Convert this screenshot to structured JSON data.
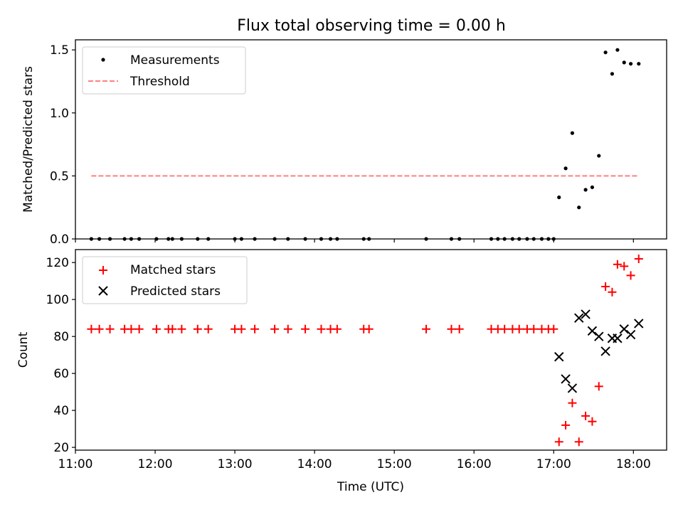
{
  "chart_data": [
    {
      "type": "scatter",
      "title": "Flux total observing time = 0.00 h",
      "ylabel": "Matched/Predicted stars",
      "xlabel": "",
      "xlim": [
        "11:00",
        "18:25"
      ],
      "ylim": [
        0,
        1.58
      ],
      "yticks": [
        0,
        0.5,
        1.0,
        1.5
      ],
      "ytick_labels": [
        "0.0",
        "0.5",
        "1.0",
        "1.5"
      ],
      "legend": {
        "placement": "top-left"
      },
      "series": [
        {
          "name": "Measurements",
          "marker": "dot",
          "color": "#000000",
          "points": [
            [
              "11:12",
              0
            ],
            [
              "11:18",
              0
            ],
            [
              "11:26",
              0
            ],
            [
              "11:37",
              0
            ],
            [
              "11:42",
              0
            ],
            [
              "11:48",
              0
            ],
            [
              "12:01",
              0
            ],
            [
              "12:10",
              0
            ],
            [
              "12:13",
              0
            ],
            [
              "12:20",
              0
            ],
            [
              "12:32",
              0
            ],
            [
              "12:40",
              0
            ],
            [
              "13:00",
              0
            ],
            [
              "13:05",
              0
            ],
            [
              "13:15",
              0
            ],
            [
              "13:30",
              0
            ],
            [
              "13:40",
              0
            ],
            [
              "13:53",
              0
            ],
            [
              "14:05",
              0
            ],
            [
              "14:12",
              0
            ],
            [
              "14:17",
              0
            ],
            [
              "14:37",
              0
            ],
            [
              "14:41",
              0
            ],
            [
              "15:24",
              0
            ],
            [
              "15:43",
              0
            ],
            [
              "15:49",
              0
            ],
            [
              "16:13",
              0
            ],
            [
              "16:18",
              0
            ],
            [
              "16:23",
              0
            ],
            [
              "16:29",
              0
            ],
            [
              "16:34",
              0
            ],
            [
              "16:40",
              0
            ],
            [
              "16:45",
              0
            ],
            [
              "16:51",
              0
            ],
            [
              "16:56",
              0
            ],
            [
              "17:00",
              0
            ],
            [
              "17:04",
              0.33
            ],
            [
              "17:09",
              0.56
            ],
            [
              "17:14",
              0.84
            ],
            [
              "17:19",
              0.25
            ],
            [
              "17:24",
              0.39
            ],
            [
              "17:29",
              0.41
            ],
            [
              "17:34",
              0.66
            ],
            [
              "17:39",
              1.48
            ],
            [
              "17:44",
              1.31
            ],
            [
              "17:48",
              1.5
            ],
            [
              "17:53",
              1.4
            ],
            [
              "17:58",
              1.39
            ],
            [
              "18:04",
              1.39
            ]
          ]
        },
        {
          "name": "Threshold",
          "marker": "dashed-line",
          "color": "#ff7f7f",
          "points": [
            [
              "11:12",
              0.5
            ],
            [
              "18:04",
              0.5
            ]
          ]
        }
      ]
    },
    {
      "type": "scatter",
      "title": "",
      "xlabel": "Time (UTC)",
      "ylabel": "Count",
      "xlim": [
        "11:00",
        "18:25"
      ],
      "ylim": [
        18.5,
        127
      ],
      "xticks": [
        "11:00",
        "12:00",
        "13:00",
        "14:00",
        "15:00",
        "16:00",
        "17:00",
        "18:00"
      ],
      "yticks": [
        20,
        40,
        60,
        80,
        100,
        120
      ],
      "ytick_labels": [
        "20",
        "40",
        "60",
        "80",
        "100",
        "120"
      ],
      "legend": {
        "placement": "top-left"
      },
      "series": [
        {
          "name": "Matched stars",
          "marker": "plus",
          "color": "#ff0000",
          "points": [
            [
              "11:12",
              84
            ],
            [
              "11:18",
              84
            ],
            [
              "11:26",
              84
            ],
            [
              "11:37",
              84
            ],
            [
              "11:42",
              84
            ],
            [
              "11:48",
              84
            ],
            [
              "12:01",
              84
            ],
            [
              "12:10",
              84
            ],
            [
              "12:13",
              84
            ],
            [
              "12:20",
              84
            ],
            [
              "12:32",
              84
            ],
            [
              "12:40",
              84
            ],
            [
              "13:00",
              84
            ],
            [
              "13:05",
              84
            ],
            [
              "13:15",
              84
            ],
            [
              "13:30",
              84
            ],
            [
              "13:40",
              84
            ],
            [
              "13:53",
              84
            ],
            [
              "14:05",
              84
            ],
            [
              "14:12",
              84
            ],
            [
              "14:17",
              84
            ],
            [
              "14:37",
              84
            ],
            [
              "14:41",
              84
            ],
            [
              "15:24",
              84
            ],
            [
              "15:43",
              84
            ],
            [
              "15:49",
              84
            ],
            [
              "16:13",
              84
            ],
            [
              "16:18",
              84
            ],
            [
              "16:23",
              84
            ],
            [
              "16:29",
              84
            ],
            [
              "16:34",
              84
            ],
            [
              "16:40",
              84
            ],
            [
              "16:45",
              84
            ],
            [
              "16:51",
              84
            ],
            [
              "16:56",
              84
            ],
            [
              "17:00",
              84
            ],
            [
              "17:04",
              23
            ],
            [
              "17:09",
              32
            ],
            [
              "17:14",
              44
            ],
            [
              "17:19",
              23
            ],
            [
              "17:24",
              37
            ],
            [
              "17:29",
              34
            ],
            [
              "17:34",
              53
            ],
            [
              "17:39",
              107
            ],
            [
              "17:44",
              104
            ],
            [
              "17:48",
              119
            ],
            [
              "17:53",
              118
            ],
            [
              "17:58",
              113
            ],
            [
              "18:04",
              122
            ]
          ]
        },
        {
          "name": "Predicted stars",
          "marker": "x",
          "color": "#000000",
          "points": [
            [
              "17:04",
              69
            ],
            [
              "17:09",
              57
            ],
            [
              "17:14",
              52
            ],
            [
              "17:19",
              90
            ],
            [
              "17:24",
              92
            ],
            [
              "17:29",
              83
            ],
            [
              "17:34",
              80
            ],
            [
              "17:39",
              72
            ],
            [
              "17:44",
              79
            ],
            [
              "17:48",
              79
            ],
            [
              "17:53",
              84
            ],
            [
              "17:58",
              81
            ],
            [
              "18:04",
              87
            ]
          ]
        }
      ]
    }
  ]
}
